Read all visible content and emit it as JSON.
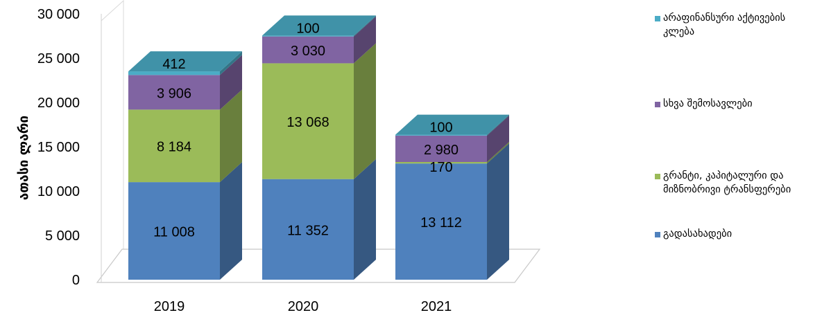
{
  "chart_data": {
    "type": "bar",
    "stacked": true,
    "three_d": true,
    "categories": [
      "2019",
      "2020",
      "2021"
    ],
    "series": [
      {
        "name": "გადასახადები",
        "color": "#4f81bd",
        "values": [
          11008,
          11352,
          13112
        ],
        "labels": [
          "11 008",
          "11 352",
          "13 112"
        ]
      },
      {
        "name": "გრანტი, კაპიტალური და მიზნობრივი ტრანსფერები",
        "color": "#9bbb59",
        "values": [
          8184,
          13068,
          170
        ],
        "labels": [
          "8 184",
          "13 068",
          "170"
        ]
      },
      {
        "name": "სხვა შემოსავლები",
        "color": "#8064a2",
        "values": [
          3906,
          3030,
          2980
        ],
        "labels": [
          "3 906",
          "3 030",
          "2 980"
        ]
      },
      {
        "name": "არაფინანსური აქტივების კლება",
        "color": "#4bacc6",
        "values": [
          412,
          100,
          100
        ],
        "labels": [
          "412",
          "100",
          "100"
        ]
      }
    ],
    "ylabel": "ათასი ლარი",
    "ylim": [
      0,
      30000
    ],
    "yticks": [
      0,
      5000,
      10000,
      15000,
      20000,
      25000,
      30000
    ],
    "ytick_labels": [
      "0",
      "5 000",
      "10 000",
      "15 000",
      "20 000",
      "25 000",
      "30 000"
    ],
    "legend_position": "right",
    "grid": false
  },
  "legend": {
    "items": [
      {
        "label_lines": [
          "არაფინანსური აქტივების",
          "კლება"
        ],
        "color": "#4bacc6"
      },
      {
        "label_lines": [
          "სხვა შემოსავლები"
        ],
        "color": "#8064a2"
      },
      {
        "label_lines": [
          "გრანტი, კაპიტალური და",
          "მიზნობრივი ტრანსფერები"
        ],
        "color": "#9bbb59"
      },
      {
        "label_lines": [
          "გადასახადები"
        ],
        "color": "#4f81bd"
      }
    ]
  }
}
